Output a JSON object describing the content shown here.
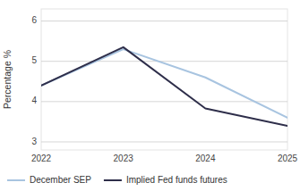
{
  "chart_data": {
    "type": "line",
    "ylabel": "Percentage %",
    "x": [
      2022,
      2023,
      2024,
      2025
    ],
    "xlim": [
      2022,
      2025
    ],
    "xticks": [
      2022,
      2023,
      2024,
      2025
    ],
    "ylim": [
      2.8,
      6.3
    ],
    "yticks": [
      3,
      4,
      5,
      6
    ],
    "grid": true,
    "legend": "bottom",
    "series": [
      {
        "name": "December SEP",
        "color": "#a8c4e0",
        "values": [
          4.4,
          5.3,
          4.6,
          3.6
        ]
      },
      {
        "name": "Implied Fed funds futures",
        "color": "#2e2e4a",
        "values": [
          4.4,
          5.35,
          3.83,
          3.4
        ]
      }
    ]
  }
}
